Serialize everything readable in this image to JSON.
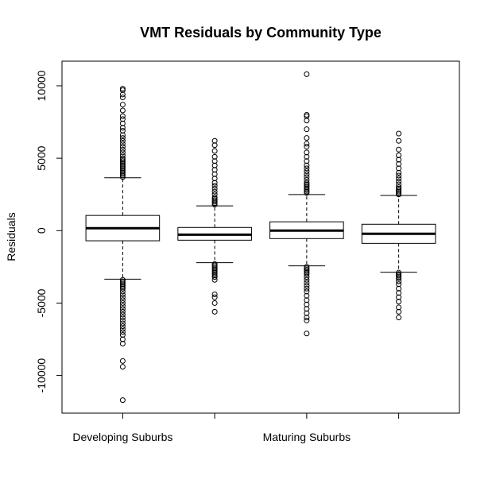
{
  "chart_data": {
    "type": "box",
    "title": "VMT Residuals by Community Type",
    "y_label": "Residuals",
    "categories": [
      "Developing Suburbs",
      null,
      "Maturing Suburbs",
      null
    ],
    "ylim": [
      -12600,
      11700
    ],
    "yticks": [
      -10000,
      -5000,
      0,
      5000,
      10000
    ],
    "boxes": [
      {
        "whislo": -3350,
        "q1": -700,
        "med": 170,
        "q3": 1050,
        "whishi": 3650,
        "outliers": [
          3700,
          3800,
          3900,
          4000,
          4100,
          4200,
          4300,
          4400,
          4500,
          4600,
          4700,
          4800,
          4900,
          5000,
          5200,
          5400,
          5600,
          5800,
          6000,
          6200,
          6400,
          6600,
          6900,
          7100,
          7400,
          7700,
          7900,
          8300,
          8700,
          9200,
          9400,
          9700,
          9800,
          -3400,
          -3500,
          -3600,
          -3700,
          -3800,
          -3900,
          -4000,
          -4200,
          -4400,
          -4600,
          -4800,
          -5000,
          -5200,
          -5400,
          -5600,
          -5800,
          -6000,
          -6200,
          -6400,
          -6600,
          -6800,
          -7000,
          -7200,
          -7500,
          -7800,
          -9000,
          -9400,
          -11700
        ]
      },
      {
        "whislo": -2210,
        "q1": -660,
        "med": -280,
        "q3": 220,
        "whishi": 1710,
        "outliers": [
          1800,
          1900,
          2000,
          2100,
          2200,
          2300,
          2500,
          2700,
          2900,
          3100,
          3300,
          3600,
          3900,
          4200,
          4500,
          4800,
          5100,
          5500,
          5900,
          6200,
          -2300,
          -2400,
          -2500,
          -2600,
          -2700,
          -2800,
          -2900,
          -3000,
          -3100,
          -3200,
          -3400,
          -4400,
          -4600,
          -5000,
          -5600
        ]
      },
      {
        "whislo": -2430,
        "q1": -550,
        "med": 0,
        "q3": 610,
        "whishi": 2490,
        "outliers": [
          2600,
          2700,
          2800,
          2900,
          3000,
          3100,
          3200,
          3300,
          3500,
          3700,
          3900,
          4100,
          4300,
          4500,
          4800,
          5100,
          5400,
          5800,
          6000,
          6400,
          7000,
          7600,
          7900,
          8000,
          10800,
          -2500,
          -2600,
          -2700,
          -2800,
          -2900,
          -3000,
          -3200,
          -3400,
          -3600,
          -3800,
          -4000,
          -4200,
          -4500,
          -4800,
          -5100,
          -5400,
          -5700,
          -6000,
          -6200,
          -7100
        ]
      },
      {
        "whislo": -2870,
        "q1": -880,
        "med": -220,
        "q3": 440,
        "whishi": 2430,
        "outliers": [
          2500,
          2600,
          2700,
          2800,
          2900,
          3000,
          3200,
          3400,
          3600,
          3800,
          4000,
          4300,
          4600,
          4900,
          5200,
          5600,
          6200,
          6700,
          -2900,
          -3000,
          -3100,
          -3200,
          -3300,
          -3500,
          -3700,
          -4000,
          -4300,
          -4600,
          -4900,
          -5300,
          -5600,
          -6000
        ]
      }
    ]
  }
}
